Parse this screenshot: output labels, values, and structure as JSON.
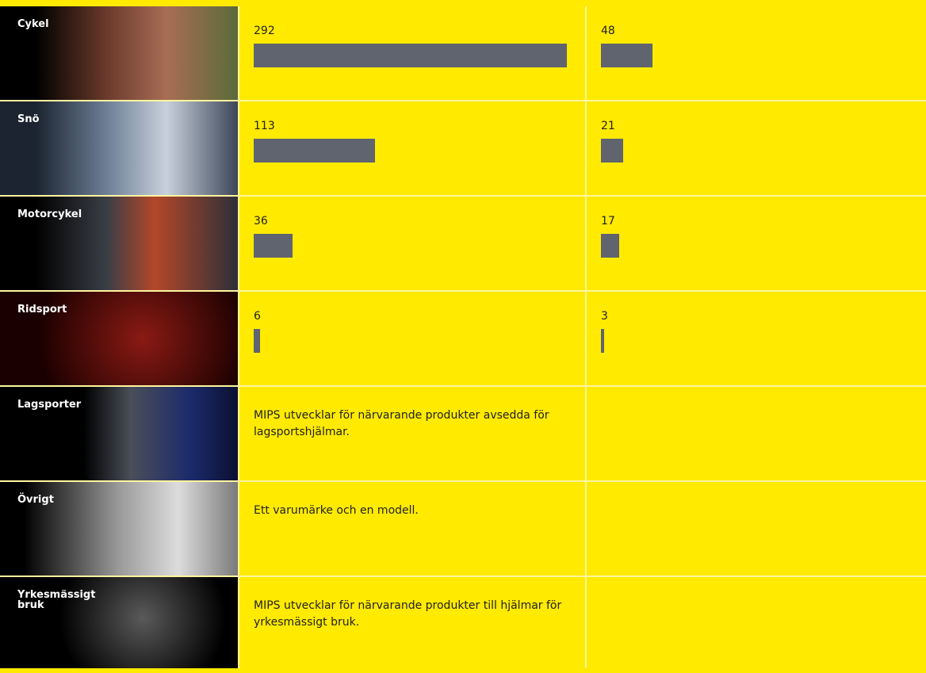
{
  "rows": [
    {
      "label": "Cykel",
      "values": [
        292,
        48
      ]
    },
    {
      "label": "Snö",
      "values": [
        113,
        21
      ]
    },
    {
      "label": "Motorcykel",
      "values": [
        36,
        17
      ]
    },
    {
      "label": "Ridsport",
      "values": [
        6,
        3
      ]
    },
    {
      "label": "Lagsporter",
      "text": "MIPS utvecklar för närvarande produkter avsedda för lagsportshjälmar."
    },
    {
      "label": "Övrigt",
      "text": "Ett varumärke och en modell."
    },
    {
      "label": "Yrkesmässigt bruk",
      "text": "MIPS utvecklar för närvarande produkter till hjälmar för yrkesmässigt bruk."
    }
  ]
}
